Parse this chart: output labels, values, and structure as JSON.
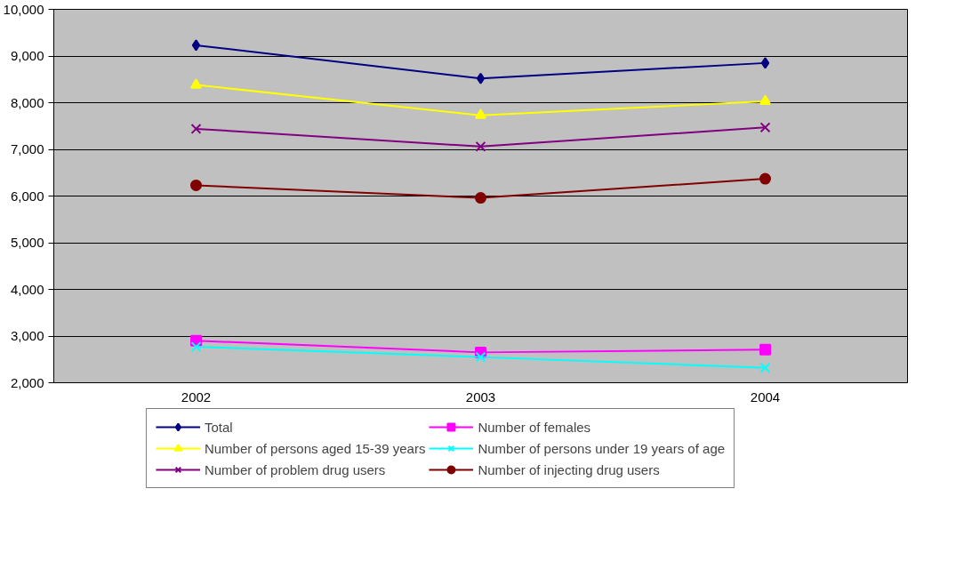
{
  "chart_data": {
    "type": "line",
    "categories": [
      "2002",
      "2003",
      "2004"
    ],
    "series": [
      {
        "name": "Total",
        "color": "#000080",
        "marker": "diamond",
        "values": [
          9230,
          8520,
          8850
        ]
      },
      {
        "name": "Number of females",
        "color": "#ff00ff",
        "marker": "square",
        "values": [
          2900,
          2650,
          2710
        ]
      },
      {
        "name": "Number of persons aged 15-39 years",
        "color": "#ffff00",
        "marker": "triangle",
        "values": [
          8380,
          7730,
          8030
        ]
      },
      {
        "name": "Number of persons under 19 years of age",
        "color": "#00ffff",
        "marker": "cross",
        "values": [
          2770,
          2550,
          2320
        ]
      },
      {
        "name": "Number of problem drug users",
        "color": "#800080",
        "marker": "cross",
        "values": [
          7440,
          7060,
          7470
        ]
      },
      {
        "name": "Number of injecting drug users",
        "color": "#800000",
        "marker": "circle",
        "values": [
          6230,
          5960,
          6370
        ]
      }
    ],
    "ylim": [
      2000,
      10000
    ],
    "yticks": [
      {
        "value": 2000,
        "label": "2,000"
      },
      {
        "value": 3000,
        "label": "3,000"
      },
      {
        "value": 4000,
        "label": "4,000"
      },
      {
        "value": 5000,
        "label": "5,000"
      },
      {
        "value": 6000,
        "label": "6,000"
      },
      {
        "value": 7000,
        "label": "7,000"
      },
      {
        "value": 8000,
        "label": "8,000"
      },
      {
        "value": 9000,
        "label": "9,000"
      },
      {
        "value": 10000,
        "label": "10,000"
      }
    ],
    "grid": "y",
    "legend": "bottom",
    "line_style": "solid"
  }
}
